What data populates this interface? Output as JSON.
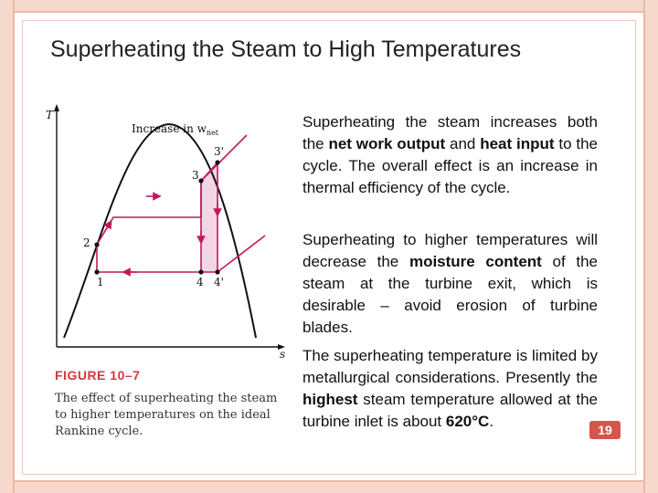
{
  "slide": {
    "title": "Superheating the Steam to High Temperatures",
    "page_number": "19"
  },
  "figure": {
    "label": "FIGURE 10–7",
    "caption": "The effect of superheating the steam to higher temperatures on the ideal Rankine cycle.",
    "axis_t": "T",
    "axis_s": "s",
    "annotation": "Increase in w",
    "annotation_sub": "net",
    "points": {
      "p1": "1",
      "p2": "2",
      "p3": "3",
      "p3p": "3'",
      "p4": "4",
      "p4p": "4'"
    },
    "colors": {
      "line": "#c2185b",
      "fill": "#f3d6e3",
      "dome": "#111111"
    }
  },
  "text": {
    "p1": {
      "a": "Superheating the steam increases both the ",
      "b": "net work output",
      "c": " and ",
      "d": "heat input",
      "e": " to the cycle. The overall effect is an increase in thermal efficiency of the cycle."
    },
    "p2": {
      "a": "Superheating to higher temperatures will decrease the ",
      "b": "moisture content",
      "c": " of the steam at the turbine exit, which is desirable – avoid erosion of turbine blades."
    },
    "p3": {
      "a": "The superheating temperature is limited by metallurgical considerations. Presently the ",
      "b": "highest",
      "c": " steam temperature allowed at the turbine inlet is about ",
      "d": "620°C",
      "e": "."
    }
  }
}
